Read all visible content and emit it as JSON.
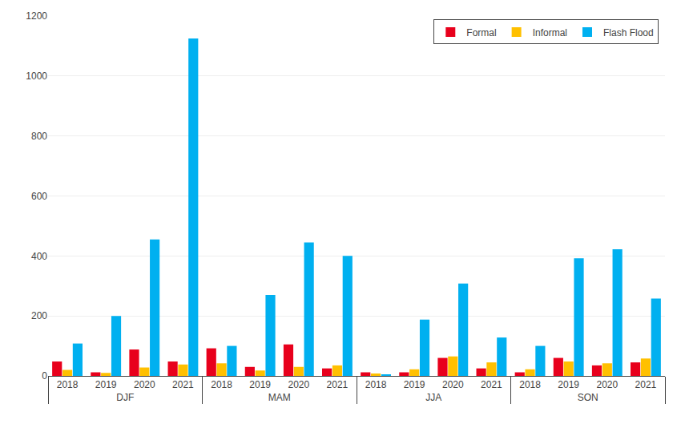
{
  "chart_data": {
    "type": "bar",
    "categories": [
      [
        "DJF",
        "2018"
      ],
      [
        "DJF",
        "2019"
      ],
      [
        "DJF",
        "2020"
      ],
      [
        "DJF",
        "2021"
      ],
      [
        "MAM",
        "2018"
      ],
      [
        "MAM",
        "2019"
      ],
      [
        "MAM",
        "2020"
      ],
      [
        "MAM",
        "2021"
      ],
      [
        "JJA",
        "2018"
      ],
      [
        "JJA",
        "2019"
      ],
      [
        "JJA",
        "2020"
      ],
      [
        "JJA",
        "2021"
      ],
      [
        "SON",
        "2018"
      ],
      [
        "SON",
        "2019"
      ],
      [
        "SON",
        "2020"
      ],
      [
        "SON",
        "2021"
      ]
    ],
    "series": [
      {
        "name": "Formal",
        "color": "#e8001c",
        "values": [
          48,
          12,
          88,
          48,
          92,
          30,
          105,
          25,
          12,
          12,
          60,
          25,
          12,
          60,
          35,
          45
        ]
      },
      {
        "name": "Informal",
        "color": "#ffc000",
        "values": [
          20,
          10,
          28,
          38,
          42,
          18,
          30,
          35,
          8,
          22,
          65,
          45,
          22,
          48,
          42,
          58
        ]
      },
      {
        "name": "Flash Flood",
        "color": "#00b0f0",
        "values": [
          108,
          200,
          455,
          1125,
          100,
          270,
          445,
          400,
          5,
          188,
          308,
          128,
          100,
          392,
          422,
          258
        ]
      }
    ],
    "ylim": [
      0,
      1200
    ],
    "yticks": [
      0,
      200,
      400,
      600,
      800,
      1000,
      1200
    ],
    "grid": true,
    "legend": "upper right"
  }
}
